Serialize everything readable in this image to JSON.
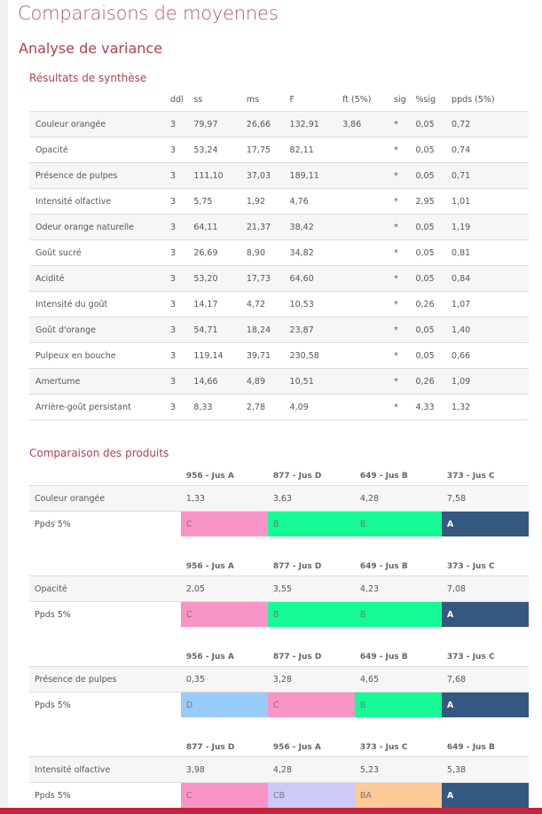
{
  "title": "Comparaisons de moyennes",
  "subtitle": "Analyse de variance",
  "summary": {
    "heading": "Résultats de synthèse",
    "columns": [
      "",
      "ddl",
      "ss",
      "ms",
      "F",
      "ft (5%)",
      "sig",
      "%sig",
      "ppds (5%)"
    ],
    "rows": [
      [
        "Couleur orangée",
        "3",
        "79,97",
        "26,66",
        "132,91",
        "3,86",
        "*",
        "0,05",
        "0,72"
      ],
      [
        "Opacité",
        "3",
        "53,24",
        "17,75",
        "82,11",
        "",
        "*",
        "0,05",
        "0,74"
      ],
      [
        "Présence de pulpes",
        "3",
        "111,10",
        "37,03",
        "189,11",
        "",
        "*",
        "0,05",
        "0,71"
      ],
      [
        "Intensité olfactive",
        "3",
        "5,75",
        "1,92",
        "4,76",
        "",
        "*",
        "2,95",
        "1,01"
      ],
      [
        "Odeur orange naturelle",
        "3",
        "64,11",
        "21,37",
        "38,42",
        "",
        "*",
        "0,05",
        "1,19"
      ],
      [
        "Goût sucré",
        "3",
        "26,69",
        "8,90",
        "34,82",
        "",
        "*",
        "0,05",
        "0,81"
      ],
      [
        "Acidité",
        "3",
        "53,20",
        "17,73",
        "64,60",
        "",
        "*",
        "0,05",
        "0,84"
      ],
      [
        "Intensité du goût",
        "3",
        "14,17",
        "4,72",
        "10,53",
        "",
        "*",
        "0,26",
        "1,07"
      ],
      [
        "Goût d'orange",
        "3",
        "54,71",
        "18,24",
        "23,87",
        "",
        "*",
        "0,05",
        "1,40"
      ],
      [
        "Pulpeux en bouche",
        "3",
        "119,14",
        "39,71",
        "230,58",
        "",
        "*",
        "0,05",
        "0,66"
      ],
      [
        "Amertume",
        "3",
        "14,66",
        "4,89",
        "10,51",
        "",
        "*",
        "0,26",
        "1,09"
      ],
      [
        "Arrière-goût persistant",
        "3",
        "8,33",
        "2,78",
        "4,09",
        "",
        "*",
        "4,33",
        "1,32"
      ]
    ]
  },
  "comparison": {
    "heading": "Comparaison des produits",
    "group_colors": {
      "A": "#34587f",
      "B": "#16fa95",
      "C": "#f895c6",
      "D": "#99cbfa",
      "CB": "#cccaf8",
      "BA": "#fdc996"
    },
    "blocks": [
      {
        "attribute": "Couleur orangée",
        "ppds_label": "Ppds 5%",
        "products": [
          "956 - Jus A",
          "877 - Jus D",
          "649 - Jus B",
          "373 - Jus C"
        ],
        "means": [
          "1,33",
          "3,63",
          "4,28",
          "7,58"
        ],
        "groups": [
          "C",
          "B",
          "B",
          "A"
        ]
      },
      {
        "attribute": "Opacité",
        "ppds_label": "Ppds 5%",
        "products": [
          "956 - Jus A",
          "877 - Jus D",
          "649 - Jus B",
          "373 - Jus C"
        ],
        "means": [
          "2,05",
          "3,55",
          "4,23",
          "7,08"
        ],
        "groups": [
          "C",
          "B",
          "B",
          "A"
        ]
      },
      {
        "attribute": "Présence de pulpes",
        "ppds_label": "Ppds 5%",
        "products": [
          "956 - Jus A",
          "877 - Jus D",
          "649 - Jus B",
          "373 - Jus C"
        ],
        "means": [
          "0,35",
          "3,28",
          "4,65",
          "7,68"
        ],
        "groups": [
          "D",
          "C",
          "B",
          "A"
        ]
      },
      {
        "attribute": "Intensité olfactive",
        "ppds_label": "Ppds 5%",
        "products": [
          "877 - Jus D",
          "956 - Jus A",
          "373 - Jus C",
          "649 - Jus B"
        ],
        "means": [
          "3,98",
          "4,28",
          "5,23",
          "5,38"
        ],
        "groups": [
          "C",
          "CB",
          "BA",
          "A"
        ]
      }
    ]
  }
}
